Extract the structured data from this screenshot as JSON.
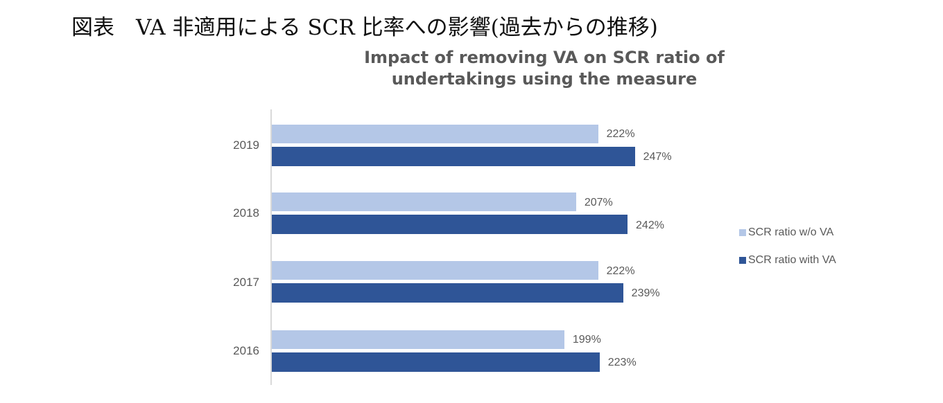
{
  "page_title": "図表　VA 非適用による SCR 比率への影響(過去からの推移)",
  "chart_data": {
    "type": "bar",
    "orientation": "horizontal",
    "title": "Impact of removing VA on SCR ratio of undertakings using the measure",
    "title_lines": [
      "Impact of removing VA on SCR ratio of",
      "undertakings using the measure"
    ],
    "categories": [
      "2019",
      "2018",
      "2017",
      "2016"
    ],
    "series": [
      {
        "name": "SCR ratio w/o VA",
        "color": "#b4c7e7",
        "values": [
          222,
          207,
          222,
          199
        ],
        "labels": [
          "222%",
          "207%",
          "222%",
          "199%"
        ]
      },
      {
        "name": "SCR ratio with VA",
        "color": "#2f5597",
        "values": [
          247,
          242,
          239,
          223
        ],
        "labels": [
          "247%",
          "242%",
          "239%",
          "223%"
        ]
      }
    ],
    "xlabel": "",
    "ylabel": "",
    "xlim": [
      0,
      270
    ],
    "grid": false,
    "legend_position": "right",
    "value_unit": "%"
  }
}
